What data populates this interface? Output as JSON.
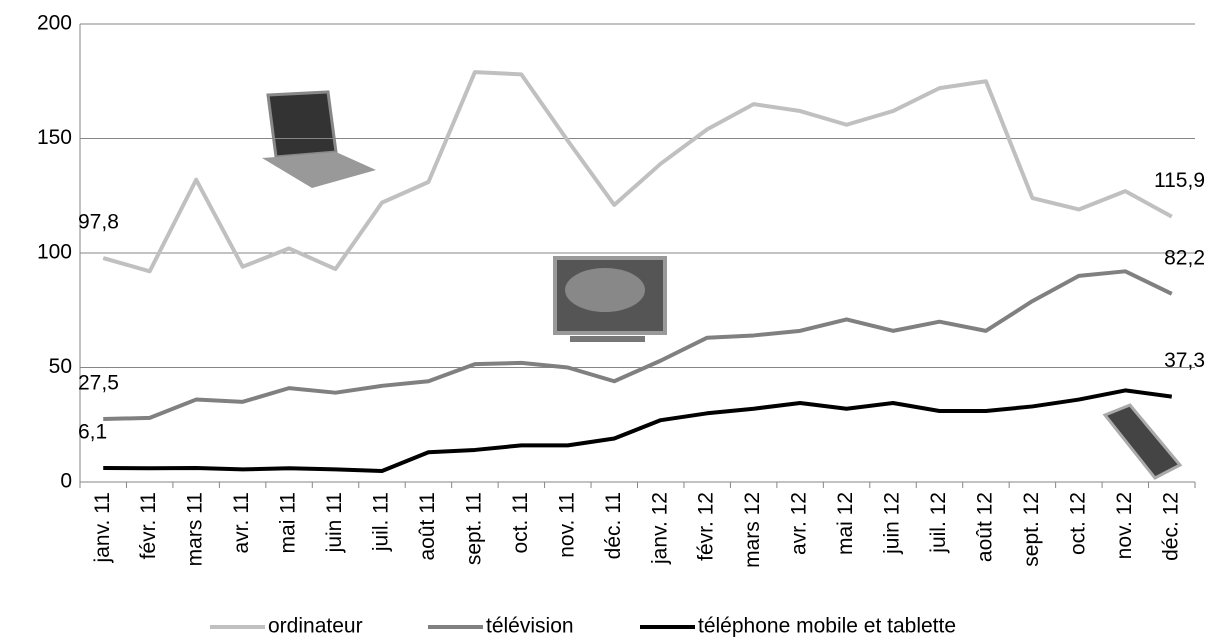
{
  "chart_data": {
    "type": "line",
    "categories": [
      "janv. 11",
      "févr. 11",
      "mars 11",
      "avr. 11",
      "mai 11",
      "juin 11",
      "juil. 11",
      "août 11",
      "sept. 11",
      "oct. 11",
      "nov. 11",
      "déc. 11",
      "janv. 12",
      "févr. 12",
      "mars 12",
      "avr. 12",
      "mai 12",
      "juin 12",
      "juil. 12",
      "août 12",
      "sept. 12",
      "oct. 12",
      "nov. 12",
      "déc. 12"
    ],
    "series": [
      {
        "name": "ordinateur",
        "color": "#c0c0c0",
        "values": [
          97.8,
          92,
          132,
          94,
          102,
          93,
          122,
          131,
          179,
          178,
          149,
          121,
          139,
          154,
          165,
          162,
          156,
          162,
          172,
          175,
          124,
          119,
          127,
          115.9
        ],
        "value_labels": [
          "97,8",
          null,
          null,
          null,
          null,
          null,
          null,
          null,
          null,
          null,
          null,
          null,
          null,
          null,
          null,
          null,
          null,
          null,
          null,
          null,
          null,
          null,
          null,
          "115,9"
        ]
      },
      {
        "name": "télévision",
        "color": "#808080",
        "values": [
          27.5,
          28,
          36,
          35,
          41,
          39,
          42,
          44,
          51.5,
          52,
          50,
          44,
          53,
          63,
          64,
          66,
          71,
          66,
          70,
          66,
          79,
          90,
          92,
          82.2
        ],
        "value_labels": [
          "27,5",
          null,
          null,
          null,
          null,
          null,
          null,
          null,
          null,
          null,
          null,
          null,
          null,
          null,
          null,
          null,
          null,
          null,
          null,
          null,
          null,
          null,
          null,
          "82,2"
        ]
      },
      {
        "name": "téléphone mobile et tablette",
        "color": "#000000",
        "values": [
          6.1,
          6,
          6.1,
          5.5,
          6,
          5.5,
          4.8,
          13,
          14,
          16,
          16,
          19,
          27,
          30,
          32,
          34.5,
          32,
          34.5,
          31,
          31,
          33,
          36,
          40,
          37.3
        ],
        "value_labels": [
          "6,1",
          null,
          null,
          null,
          null,
          null,
          null,
          null,
          null,
          null,
          null,
          null,
          null,
          null,
          null,
          null,
          null,
          null,
          null,
          null,
          null,
          null,
          null,
          "37,3"
        ]
      }
    ],
    "ylim": [
      0,
      200
    ],
    "yticks": [
      0,
      50,
      100,
      150,
      200
    ],
    "grid": true,
    "legend": "bottom"
  }
}
